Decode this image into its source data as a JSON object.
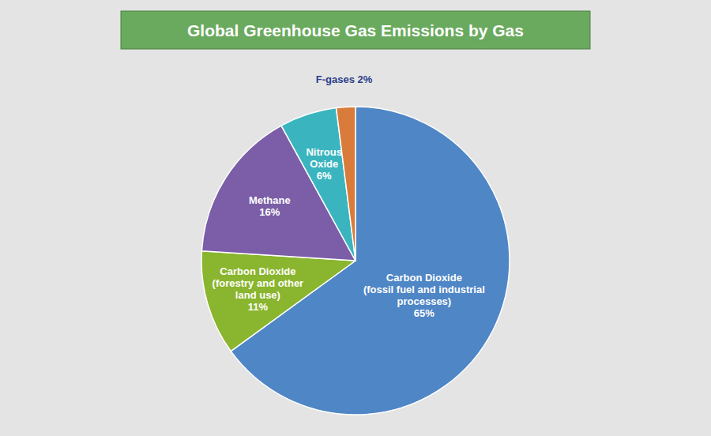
{
  "chart_data": {
    "type": "pie",
    "title": "Global Greenhouse Gas Emissions by Gas",
    "categories": [
      "Carbon Dioxide\n(fossil fuel and industrial\nprocesses)",
      "Carbon Dioxide\n(forestry and other\nland use)",
      "Methane",
      "Nitrous\nOxide",
      "F-gases"
    ],
    "values": [
      65,
      11,
      16,
      6,
      2
    ],
    "value_labels": [
      "65%",
      "11%",
      "16%",
      "6%",
      "2%"
    ],
    "data_labels": true,
    "colors": [
      "#4f86c6",
      "#8ab52e",
      "#7b5ea7",
      "#3ab5bf",
      "#d97b3a"
    ]
  }
}
